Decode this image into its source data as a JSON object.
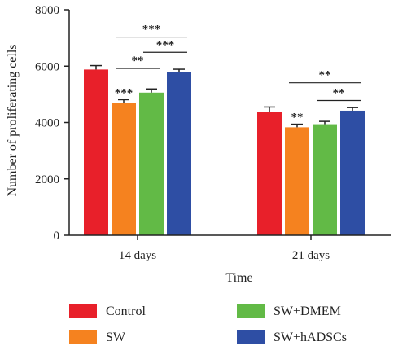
{
  "chart_data": {
    "type": "bar",
    "categories": [
      "14 days",
      "21 days"
    ],
    "series": [
      {
        "name": "Control",
        "color": "#e8202a",
        "values": [
          5880,
          4380
        ],
        "errors": [
          140,
          170
        ]
      },
      {
        "name": "SW",
        "color": "#f5821f",
        "values": [
          4680,
          3830
        ],
        "errors": [
          130,
          110
        ]
      },
      {
        "name": "SW+DMEM",
        "color": "#62ba46",
        "values": [
          5060,
          3940
        ],
        "errors": [
          130,
          100
        ]
      },
      {
        "name": "SW+hADSCs",
        "color": "#2e4ea4",
        "values": [
          5800,
          4420
        ],
        "errors": [
          90,
          110
        ]
      }
    ],
    "xlabel": "Time",
    "ylabel": "Number of proliferating cells",
    "ylim": [
      0,
      8000
    ],
    "yticks": [
      "0",
      "2000",
      "4000",
      "6000",
      "8000"
    ],
    "grid": false,
    "legend_position": "bottom",
    "bar_annotations": [
      {
        "category": 0,
        "series": 1,
        "text": "***"
      },
      {
        "category": 1,
        "series": 1,
        "text": "**"
      }
    ],
    "brackets": [
      {
        "category": 0,
        "from": 1,
        "to": 3,
        "value": 7030,
        "text": "***"
      },
      {
        "category": 0,
        "from": 1,
        "to": 2,
        "value": 5920,
        "text": "**"
      },
      {
        "category": 0,
        "from": 2,
        "to": 3,
        "value": 6490,
        "text": "***"
      },
      {
        "category": 1,
        "from": 1,
        "to": 3,
        "value": 5410,
        "text": "**"
      },
      {
        "category": 1,
        "from": 2,
        "to": 3,
        "value": 4780,
        "text": "**"
      }
    ]
  }
}
